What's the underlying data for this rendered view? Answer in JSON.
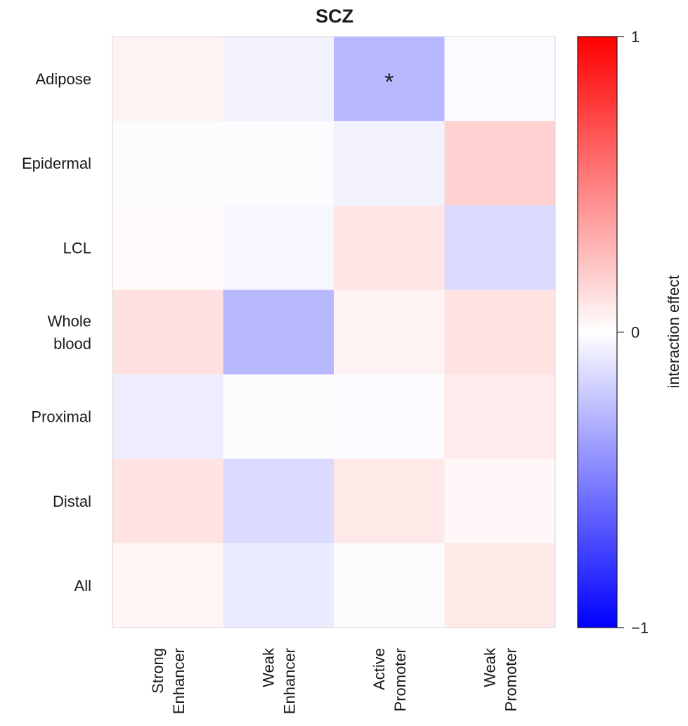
{
  "chart_data": {
    "type": "heatmap",
    "title": "SCZ",
    "rows": [
      "Adipose",
      "Epidermal",
      "LCL",
      "Whole blood",
      "Proximal",
      "Distal",
      "All"
    ],
    "row_label_lines": [
      [
        "Adipose"
      ],
      [
        "Epidermal"
      ],
      [
        "LCL"
      ],
      [
        "Whole",
        "blood"
      ],
      [
        "Proximal"
      ],
      [
        "Distal"
      ],
      [
        "All"
      ]
    ],
    "columns": [
      "Strong Enhancer",
      "Weak Enhancer",
      "Active Promoter",
      "Weak Promoter"
    ],
    "column_label_lines": [
      [
        "Strong",
        "Enhancer"
      ],
      [
        "Weak",
        "Enhancer"
      ],
      [
        "Active",
        "Promoter"
      ],
      [
        "Weak",
        "Promoter"
      ]
    ],
    "values": [
      [
        0.05,
        -0.05,
        -0.28,
        -0.02
      ],
      [
        -0.01,
        -0.01,
        -0.05,
        0.18
      ],
      [
        0.02,
        -0.03,
        0.1,
        -0.14
      ],
      [
        0.12,
        -0.28,
        0.05,
        0.11
      ],
      [
        -0.07,
        -0.01,
        -0.02,
        0.08
      ],
      [
        0.11,
        -0.14,
        0.09,
        0.03
      ],
      [
        0.04,
        -0.08,
        -0.01,
        0.09
      ]
    ],
    "significance": [
      [
        "",
        "",
        "*",
        ""
      ],
      [
        "",
        "",
        "",
        ""
      ],
      [
        "",
        "",
        "",
        ""
      ],
      [
        "",
        "",
        "",
        ""
      ],
      [
        "",
        "",
        "",
        ""
      ],
      [
        "",
        "",
        "",
        ""
      ],
      [
        "",
        "",
        "",
        ""
      ]
    ],
    "colorbar": {
      "label": "interaction effect",
      "range": [
        -1,
        1
      ],
      "ticks": [
        1,
        0,
        -1
      ],
      "tick_labels": [
        "1",
        "0",
        "−1"
      ],
      "colors": {
        "low": "#0000ff",
        "mid": "#ffffff",
        "high": "#ff0000"
      }
    },
    "grid": false
  }
}
